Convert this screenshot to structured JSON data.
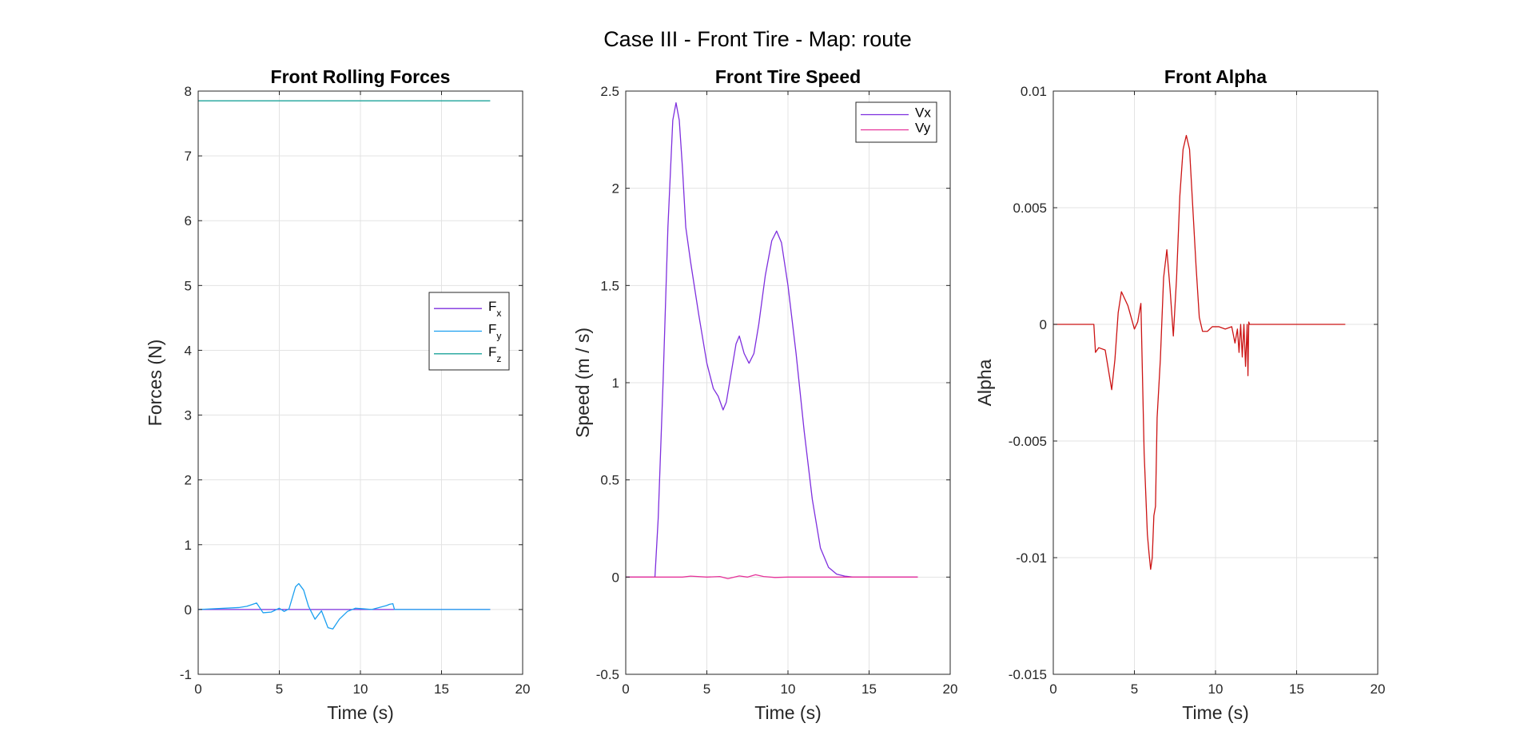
{
  "figure_title": "Case III - Front Tire - Map: route",
  "chart_data": [
    {
      "type": "line",
      "title": "Front Rolling Forces",
      "xlabel": "Time (s)",
      "ylabel": "Forces (N)",
      "xlim": [
        0,
        20
      ],
      "ylim": [
        -1,
        8
      ],
      "xticks": [
        0,
        5,
        10,
        15,
        20
      ],
      "yticks": [
        -1,
        0,
        1,
        2,
        3,
        4,
        5,
        6,
        7,
        8
      ],
      "grid": true,
      "legend_position": "right",
      "series": [
        {
          "name": "F",
          "subscript": "x",
          "color": "#7E2FDE",
          "x": [
            0,
            18
          ],
          "y": [
            0,
            0
          ]
        },
        {
          "name": "F",
          "subscript": "y",
          "color": "#1A9FF0",
          "x": [
            0,
            2.5,
            3.0,
            3.6,
            4.0,
            4.5,
            5.0,
            5.3,
            5.6,
            6.0,
            6.2,
            6.5,
            6.8,
            7.2,
            7.6,
            8.0,
            8.3,
            8.7,
            9.2,
            9.7,
            10.2,
            10.7,
            11.0,
            11.3,
            11.6,
            11.8,
            12.0,
            12.1,
            18
          ],
          "y": [
            0,
            0.03,
            0.05,
            0.1,
            -0.05,
            -0.04,
            0.02,
            -0.03,
            0.01,
            0.35,
            0.4,
            0.3,
            0.05,
            -0.15,
            -0.02,
            -0.28,
            -0.3,
            -0.15,
            -0.03,
            0.02,
            0.01,
            0.0,
            0.02,
            0.04,
            0.06,
            0.08,
            0.09,
            0.0,
            0
          ]
        },
        {
          "name": "F",
          "subscript": "z",
          "color": "#1BA39A",
          "x": [
            0,
            18
          ],
          "y": [
            7.85,
            7.85
          ]
        }
      ]
    },
    {
      "type": "line",
      "title": "Front Tire Speed",
      "xlabel": "Time (s)",
      "ylabel": "Speed (m / s)",
      "xlim": [
        0,
        20
      ],
      "ylim": [
        -0.5,
        2.5
      ],
      "xticks": [
        0,
        5,
        10,
        15,
        20
      ],
      "yticks": [
        -0.5,
        0,
        0.5,
        1,
        1.5,
        2,
        2.5
      ],
      "grid": true,
      "legend_position": "top-right",
      "series": [
        {
          "name": "Vx",
          "color": "#7E2FDE",
          "x": [
            0,
            1.8,
            2.0,
            2.3,
            2.6,
            2.9,
            3.1,
            3.3,
            3.5,
            3.7,
            4.0,
            4.5,
            5.0,
            5.4,
            5.7,
            6.0,
            6.2,
            6.5,
            6.8,
            7.0,
            7.3,
            7.6,
            7.9,
            8.2,
            8.6,
            9.0,
            9.3,
            9.6,
            10.0,
            10.5,
            11.0,
            11.5,
            12.0,
            12.5,
            13.0,
            13.5,
            14.0,
            15.0,
            18
          ],
          "y": [
            0,
            0,
            0.3,
            1.0,
            1.8,
            2.35,
            2.44,
            2.35,
            2.1,
            1.8,
            1.62,
            1.35,
            1.1,
            0.97,
            0.93,
            0.86,
            0.9,
            1.05,
            1.2,
            1.24,
            1.15,
            1.1,
            1.15,
            1.3,
            1.55,
            1.73,
            1.78,
            1.72,
            1.5,
            1.15,
            0.75,
            0.4,
            0.15,
            0.05,
            0.015,
            0.005,
            0.0,
            0.0,
            0.0
          ]
        },
        {
          "name": "Vy",
          "color": "#E6339A",
          "x": [
            0,
            3.5,
            4.0,
            5.0,
            5.8,
            6.3,
            7.0,
            7.5,
            8.0,
            8.5,
            9.2,
            10.0,
            11.0,
            18
          ],
          "y": [
            0,
            0,
            0.005,
            0.0,
            0.003,
            -0.008,
            0.006,
            0.0,
            0.012,
            0.003,
            -0.002,
            0.0,
            0.0,
            0.0
          ]
        }
      ]
    },
    {
      "type": "line",
      "title": "Front Alpha",
      "xlabel": "Time (s)",
      "ylabel": "Alpha",
      "xlim": [
        0,
        20
      ],
      "ylim": [
        -0.015,
        0.01
      ],
      "xticks": [
        0,
        5,
        10,
        15,
        20
      ],
      "yticks": [
        -0.015,
        -0.01,
        -0.005,
        0,
        0.005,
        0.01
      ],
      "ytick_labels": [
        "-0.015",
        "-0.01",
        "-0.005",
        "0",
        "0.005",
        "0.01"
      ],
      "grid": true,
      "series": [
        {
          "name": "",
          "color": "#CC1414",
          "x": [
            0,
            2.5,
            2.6,
            2.8,
            3.2,
            3.6,
            3.8,
            4.0,
            4.2,
            4.6,
            5.0,
            5.2,
            5.4,
            5.6,
            5.8,
            5.9,
            6.0,
            6.1,
            6.2,
            6.3,
            6.4,
            6.6,
            6.8,
            7.0,
            7.2,
            7.4,
            7.6,
            7.8,
            8.0,
            8.2,
            8.4,
            8.6,
            8.8,
            9.0,
            9.2,
            9.5,
            9.8,
            10.2,
            10.6,
            11.0,
            11.2,
            11.35,
            11.45,
            11.55,
            11.65,
            11.75,
            11.85,
            11.95,
            12.0,
            12.05,
            12.1,
            18
          ],
          "y": [
            0,
            0,
            -0.0012,
            -0.001,
            -0.0011,
            -0.0028,
            -0.0015,
            0.0005,
            0.0014,
            0.0008,
            -0.0002,
            0.0001,
            0.0009,
            -0.0055,
            -0.009,
            -0.0098,
            -0.0105,
            -0.01,
            -0.0082,
            -0.0078,
            -0.004,
            -0.0015,
            0.002,
            0.0032,
            0.0015,
            -0.0005,
            0.002,
            0.0055,
            0.0075,
            0.0081,
            0.0075,
            0.005,
            0.0025,
            0.0003,
            -0.0003,
            -0.0003,
            -0.0001,
            -0.0001,
            -0.0002,
            -0.0001,
            -0.0008,
            -0.0002,
            -0.0012,
            0.0,
            -0.0014,
            0.0,
            -0.0018,
            0.0,
            -0.0022,
            0.0001,
            0.0,
            0.0
          ]
        }
      ]
    }
  ]
}
